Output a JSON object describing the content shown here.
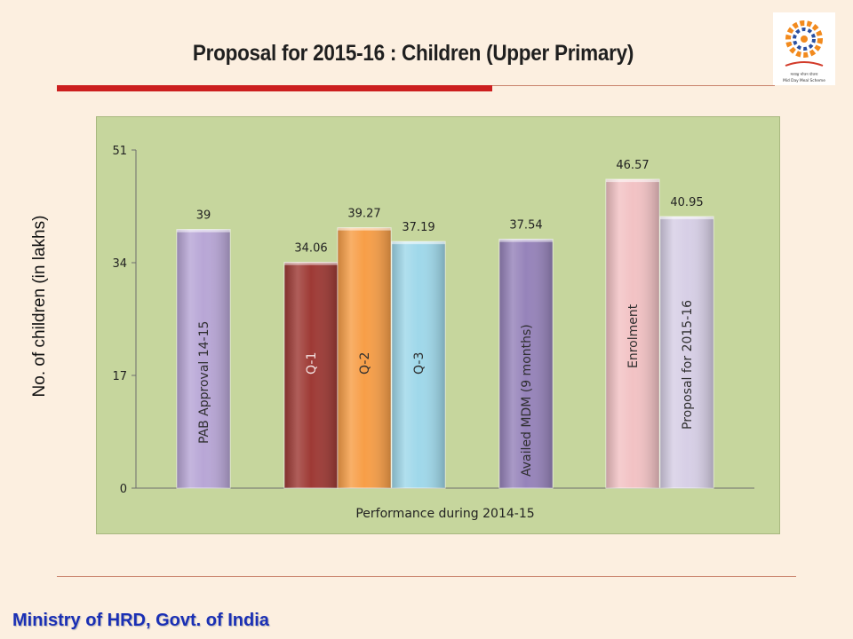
{
  "slide": {
    "title": "Proposal for 2015-16 : Children (Upper Primary)",
    "footer": "Ministry of HRD, Govt. of India",
    "logo_caption": "Mid Day Meal Scheme"
  },
  "chart_data": {
    "type": "bar",
    "ylabel": "No. of children (in lakhs)",
    "xlabel": "Performance during 2014-15",
    "ylim": [
      0,
      51
    ],
    "yticks": [
      0,
      17,
      34,
      51
    ],
    "grid": false,
    "categories": [
      "PAB Approval 14-15",
      "Q-1",
      "Q-2",
      "Q-3",
      "Availed MDM (9 months)",
      "Enrolment",
      "Proposal for 2015-16"
    ],
    "values": [
      39,
      34.06,
      39.27,
      37.19,
      37.54,
      46.57,
      40.95
    ],
    "value_labels": [
      "39",
      "34.06",
      "39.27",
      "37.19",
      "37.54",
      "46.57",
      "40.95"
    ],
    "colors": [
      "#b8a6d6",
      "#9e3a35",
      "#f79e47",
      "#9fd8ea",
      "#9683ba",
      "#f2c2c4",
      "#d7cfe6"
    ]
  }
}
